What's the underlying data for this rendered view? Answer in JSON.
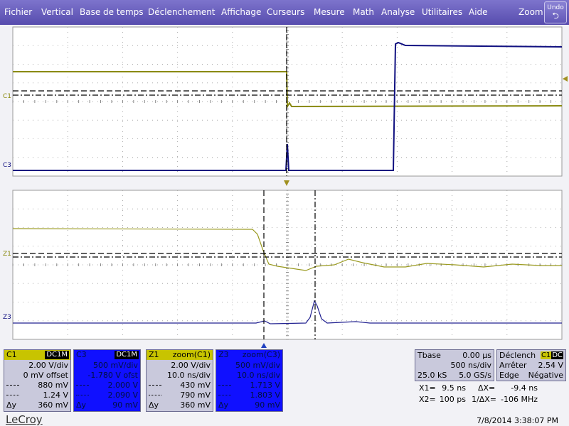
{
  "menu": {
    "items": [
      "Fichier",
      "Vertical",
      "Base de temps",
      "Déclenchement",
      "Affichage",
      "Curseurs",
      "Mesure",
      "Math",
      "Analyse",
      "Utilitaires",
      "Aide"
    ],
    "zoom": "Zoom",
    "undo": "Undo"
  },
  "traces": {
    "top": [
      "C1",
      "C3"
    ],
    "bottom": [
      "Z1",
      "Z3"
    ]
  },
  "panels": [
    {
      "title": "C1",
      "tag": "DC1M",
      "scale": "2.00 V/div",
      "offset": "0 mV offset",
      "cursor1": "880 mV",
      "cursor2": "1.24 V",
      "dy_label": "Δy",
      "dy": "360 mV"
    },
    {
      "title": "C3",
      "tag": "DC1M",
      "scale": "500 mV/div",
      "offset": "-1.780 V ofst",
      "cursor1": "2.000 V",
      "cursor2": "2.090 V",
      "dy_label": "Δy",
      "dy": "90 mV"
    },
    {
      "title": "Z1",
      "tag": "zoom(C1)",
      "scale": "2.00 V/div",
      "offset": "10.0 ns/div",
      "cursor1": "430 mV",
      "cursor2": "790 mV",
      "dy_label": "Δy",
      "dy": "360 mV"
    },
    {
      "title": "Z3",
      "tag": "zoom(C3)",
      "scale": "500 mV/div",
      "offset": "10.0 ns/div",
      "cursor1": "1.713 V",
      "cursor2": "1.803 V",
      "dy_label": "Δy",
      "dy": "90 mV"
    }
  ],
  "timebase": {
    "title": "Tbase",
    "delay": "0.00 µs",
    "scale": "500 ns/div",
    "samples": "25.0 kS",
    "rate": "5.0 GS/s"
  },
  "trigger": {
    "title": "Déclench",
    "source": "C1",
    "coupling": "DC",
    "mode": "Arrêter",
    "level": "2.54 V",
    "type": "Edge",
    "slope": "Négative"
  },
  "cursors": {
    "x1_label": "X1=",
    "x1": "9.5 ns",
    "dx_label": "ΔX=",
    "dx": "-9.4 ns",
    "x2_label": "X2=",
    "x2": "100 ps",
    "inv_dx_label": "1/ΔX=",
    "inv_dx": "-106 MHz"
  },
  "footer": {
    "brand": "LeCroy",
    "timestamp": "7/8/2014 3:38:07 PM"
  }
}
